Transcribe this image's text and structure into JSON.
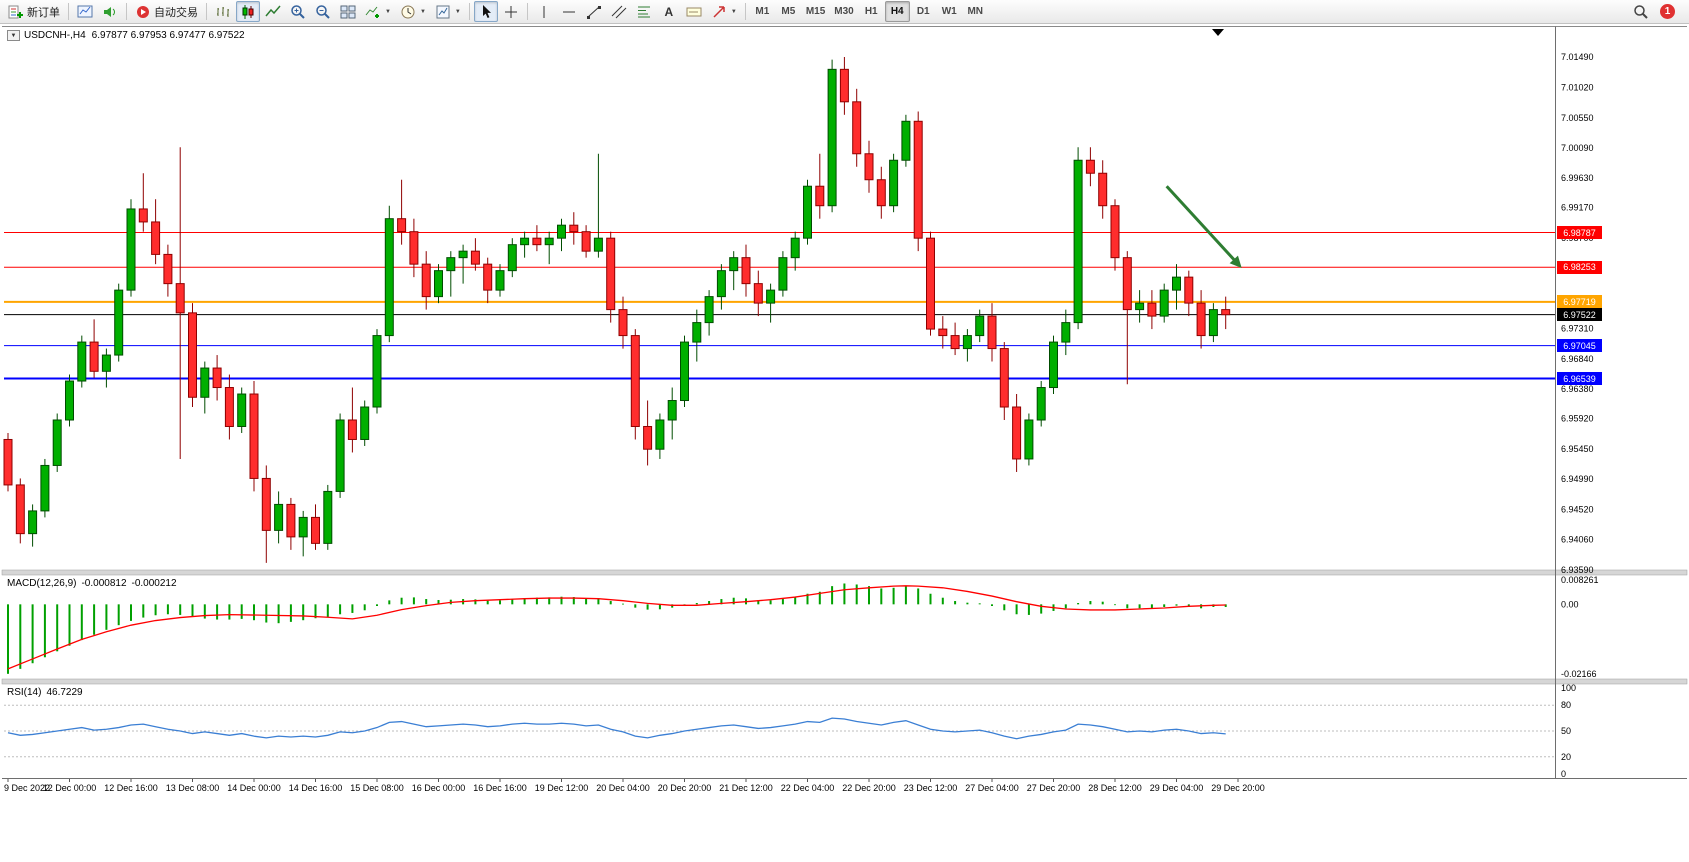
{
  "toolbar": {
    "new_order_label": "新订单",
    "auto_trading_label": "自动交易",
    "timeframes": [
      "M1",
      "M5",
      "M15",
      "M30",
      "H1",
      "H4",
      "D1",
      "W1",
      "MN"
    ],
    "active_timeframe": "H4",
    "badge_count": "1"
  },
  "chart": {
    "symbol_title": "USDCNH-,H4",
    "ohlc": "6.97877 6.97953 6.97477 6.97522",
    "colors": {
      "up_fill": "#00af00",
      "up_stroke": "#004d00",
      "down_fill": "#ff2d2d",
      "down_stroke": "#8f0000",
      "macd_hist": "#00a000",
      "macd_signal": "#ff0000",
      "rsi_line": "#3b7fd4",
      "axis_text": "#000000"
    },
    "price_lines": [
      {
        "label": "6.98787",
        "price": 6.98787,
        "color": "#ff0000",
        "width": 1
      },
      {
        "label": "6.98253",
        "price": 6.98253,
        "color": "#ff0000",
        "width": 1
      },
      {
        "label": "6.97719",
        "price": 6.97719,
        "color": "#ffa500",
        "width": 2
      },
      {
        "label": "6.97522",
        "price": 6.97522,
        "color": "#000000",
        "width": 1
      },
      {
        "label": "6.97045",
        "price": 6.97045,
        "color": "#0000ff",
        "width": 1
      },
      {
        "label": "6.96539",
        "price": 6.96539,
        "color": "#0000ff",
        "width": 2
      }
    ],
    "arrow": {
      "i1": 94.2,
      "p1": 6.995,
      "i2": 100.3,
      "p2": 6.9824,
      "color": "#2e7d32"
    }
  },
  "indicators": {
    "macd": {
      "name": "MACD(12,26,9)",
      "value_main": "-0.000812",
      "value_signal": "-0.000212"
    },
    "rsi": {
      "name": "RSI(14)",
      "value": "46.7229"
    }
  },
  "axes": {
    "price_labels": [
      "7.01490",
      "7.01020",
      "7.00550",
      "7.00090",
      "6.99630",
      "6.99170",
      "6.98700",
      "6.98230",
      "6.97770",
      "6.97310",
      "6.96840",
      "6.96380",
      "6.95920",
      "6.95450",
      "6.94990",
      "6.94520",
      "6.94060",
      "6.93590"
    ],
    "macd_labels": [
      "0.008261",
      "0.00",
      "-0.02166"
    ],
    "rsi_labels": [
      "100",
      "80",
      "50",
      "20",
      "0"
    ],
    "time_labels": [
      "9 Dec 2022",
      "12 Dec 00:00",
      "12 Dec 16:00",
      "13 Dec 08:00",
      "14 Dec 00:00",
      "14 Dec 16:00",
      "15 Dec 08:00",
      "16 Dec 00:00",
      "16 Dec 16:00",
      "19 Dec 12:00",
      "20 Dec 04:00",
      "20 Dec 20:00",
      "21 Dec 12:00",
      "22 Dec 04:00",
      "22 Dec 20:00",
      "23 Dec 12:00",
      "27 Dec 04:00",
      "27 Dec 20:00",
      "28 Dec 12:00",
      "29 Dec 04:00",
      "29 Dec 20:00"
    ]
  },
  "chart_data": {
    "type": "candlestick",
    "symbol": "USDCNH-",
    "timeframe": "H4",
    "price_range": {
      "max": 7.0149,
      "min": 6.9359
    },
    "candles": [
      [
        6.956,
        6.957,
        6.948,
        6.949
      ],
      [
        6.949,
        6.95,
        6.94,
        6.9415
      ],
      [
        6.9415,
        6.946,
        6.9395,
        6.945
      ],
      [
        6.945,
        6.953,
        6.944,
        6.952
      ],
      [
        6.952,
        6.96,
        6.951,
        6.959
      ],
      [
        6.959,
        6.966,
        6.958,
        6.965
      ],
      [
        6.965,
        6.972,
        6.964,
        6.971
      ],
      [
        6.971,
        6.9745,
        6.9655,
        6.9665
      ],
      [
        6.9665,
        6.97,
        6.964,
        6.969
      ],
      [
        6.969,
        6.98,
        6.968,
        6.979
      ],
      [
        6.979,
        6.993,
        6.978,
        6.9915
      ],
      [
        6.9915,
        6.997,
        6.988,
        6.9895
      ],
      [
        6.9895,
        6.993,
        6.983,
        6.9845
      ],
      [
        6.9845,
        6.986,
        6.978,
        6.98
      ],
      [
        6.98,
        7.001,
        6.953,
        6.9755
      ],
      [
        6.9755,
        6.977,
        6.961,
        6.9625
      ],
      [
        6.9625,
        6.968,
        6.96,
        6.967
      ],
      [
        6.967,
        6.969,
        6.962,
        6.964
      ],
      [
        6.964,
        6.966,
        6.956,
        6.958
      ],
      [
        6.958,
        6.964,
        6.957,
        6.963
      ],
      [
        6.963,
        6.965,
        6.948,
        6.95
      ],
      [
        6.95,
        6.952,
        6.937,
        6.942
      ],
      [
        6.942,
        6.948,
        6.94,
        6.946
      ],
      [
        6.946,
        6.947,
        6.939,
        6.941
      ],
      [
        6.941,
        6.945,
        6.938,
        6.944
      ],
      [
        6.944,
        6.946,
        6.939,
        6.94
      ],
      [
        6.94,
        6.949,
        6.939,
        6.948
      ],
      [
        6.948,
        6.96,
        6.947,
        6.959
      ],
      [
        6.959,
        6.964,
        6.954,
        6.956
      ],
      [
        6.956,
        6.962,
        6.955,
        6.961
      ],
      [
        6.961,
        6.973,
        6.96,
        6.972
      ],
      [
        6.972,
        6.992,
        6.971,
        6.99
      ],
      [
        6.99,
        6.996,
        6.986,
        6.988
      ],
      [
        6.988,
        6.99,
        6.981,
        6.983
      ],
      [
        6.983,
        6.985,
        6.976,
        6.978
      ],
      [
        6.978,
        6.983,
        6.977,
        6.982
      ],
      [
        6.982,
        6.985,
        6.978,
        6.984
      ],
      [
        6.984,
        6.986,
        6.98,
        6.985
      ],
      [
        6.985,
        6.987,
        6.982,
        6.983
      ],
      [
        6.983,
        6.984,
        6.977,
        6.979
      ],
      [
        6.979,
        6.983,
        6.978,
        6.982
      ],
      [
        6.982,
        6.987,
        6.981,
        6.986
      ],
      [
        6.986,
        6.988,
        6.984,
        6.987
      ],
      [
        6.987,
        6.989,
        6.985,
        6.986
      ],
      [
        6.986,
        6.988,
        6.983,
        6.987
      ],
      [
        6.987,
        6.99,
        6.985,
        6.989
      ],
      [
        6.989,
        6.991,
        6.986,
        6.988
      ],
      [
        6.988,
        6.989,
        6.984,
        6.985
      ],
      [
        6.985,
        7.0,
        6.984,
        6.987
      ],
      [
        6.987,
        6.988,
        6.974,
        6.976
      ],
      [
        6.976,
        6.978,
        6.97,
        6.972
      ],
      [
        6.972,
        6.973,
        6.956,
        6.958
      ],
      [
        6.958,
        6.962,
        6.952,
        6.9545
      ],
      [
        6.9545,
        6.96,
        6.953,
        6.959
      ],
      [
        6.959,
        6.964,
        6.956,
        6.962
      ],
      [
        6.962,
        6.972,
        6.961,
        6.971
      ],
      [
        6.971,
        6.976,
        6.968,
        6.974
      ],
      [
        6.974,
        6.979,
        6.972,
        6.978
      ],
      [
        6.978,
        6.983,
        6.976,
        6.982
      ],
      [
        6.982,
        6.985,
        6.979,
        6.984
      ],
      [
        6.984,
        6.986,
        6.978,
        6.98
      ],
      [
        6.98,
        6.982,
        6.975,
        6.977
      ],
      [
        6.977,
        6.98,
        6.974,
        6.979
      ],
      [
        6.979,
        6.985,
        6.978,
        6.984
      ],
      [
        6.984,
        6.988,
        6.982,
        6.987
      ],
      [
        6.987,
        6.996,
        6.986,
        6.995
      ],
      [
        6.995,
        7.0,
        6.99,
        6.992
      ],
      [
        6.992,
        7.0145,
        6.991,
        7.013
      ],
      [
        7.013,
        7.0149,
        7.006,
        7.008
      ],
      [
        7.008,
        7.01,
        6.998,
        7.0
      ],
      [
        7.0,
        7.002,
        6.994,
        6.996
      ],
      [
        6.996,
        6.998,
        6.99,
        6.992
      ],
      [
        6.992,
        7.0,
        6.991,
        6.999
      ],
      [
        6.999,
        7.006,
        6.998,
        7.005
      ],
      [
        7.005,
        7.0065,
        6.985,
        6.987
      ],
      [
        6.987,
        6.988,
        6.972,
        6.973
      ],
      [
        6.973,
        6.975,
        6.97,
        6.972
      ],
      [
        6.972,
        6.974,
        6.969,
        6.97
      ],
      [
        6.97,
        6.973,
        6.968,
        6.972
      ],
      [
        6.972,
        6.976,
        6.971,
        6.975
      ],
      [
        6.975,
        6.977,
        6.968,
        6.97
      ],
      [
        6.97,
        6.971,
        6.959,
        6.961
      ],
      [
        6.961,
        6.963,
        6.951,
        6.953
      ],
      [
        6.953,
        6.96,
        6.952,
        6.959
      ],
      [
        6.959,
        6.965,
        6.958,
        6.964
      ],
      [
        6.964,
        6.972,
        6.963,
        6.971
      ],
      [
        6.971,
        6.976,
        6.969,
        6.974
      ],
      [
        6.974,
        7.001,
        6.973,
        6.999
      ],
      [
        6.999,
        7.001,
        6.995,
        6.997
      ],
      [
        6.997,
        6.999,
        6.99,
        6.992
      ],
      [
        6.992,
        6.993,
        6.982,
        6.984
      ],
      [
        6.984,
        6.985,
        6.9645,
        6.976
      ],
      [
        6.976,
        6.979,
        6.974,
        6.977
      ],
      [
        6.977,
        6.979,
        6.973,
        6.975
      ],
      [
        6.975,
        6.98,
        6.974,
        6.979
      ],
      [
        6.979,
        6.983,
        6.976,
        6.981
      ],
      [
        6.981,
        6.982,
        6.975,
        6.977
      ],
      [
        6.977,
        6.979,
        6.97,
        6.972
      ],
      [
        6.972,
        6.977,
        6.971,
        6.976
      ],
      [
        6.976,
        6.978,
        6.973,
        6.97522
      ]
    ],
    "macd": {
      "range": {
        "max": 0.008261,
        "min": -0.02166
      },
      "histogram": [
        -0.021,
        -0.0195,
        -0.0178,
        -0.016,
        -0.0142,
        -0.0125,
        -0.0108,
        -0.0092,
        -0.0077,
        -0.0063,
        -0.005,
        -0.004,
        -0.0033,
        -0.003,
        -0.0032,
        -0.0038,
        -0.0043,
        -0.0046,
        -0.0046,
        -0.0044,
        -0.0048,
        -0.0055,
        -0.0057,
        -0.0053,
        -0.0048,
        -0.0042,
        -0.0038,
        -0.003,
        -0.0026,
        -0.0018,
        -0.0005,
        0.0012,
        0.002,
        0.0021,
        0.0016,
        0.0013,
        0.0014,
        0.0016,
        0.0015,
        0.0011,
        0.0012,
        0.0016,
        0.0019,
        0.002,
        0.0021,
        0.0023,
        0.0022,
        0.0018,
        0.0019,
        0.001,
        0.0002,
        -0.001,
        -0.0016,
        -0.0015,
        -0.001,
        -0.0002,
        0.0004,
        0.001,
        0.0016,
        0.002,
        0.0018,
        0.0013,
        0.0012,
        0.0016,
        0.0022,
        0.0032,
        0.0038,
        0.0055,
        0.0063,
        0.006,
        0.0055,
        0.0048,
        0.005,
        0.0056,
        0.0048,
        0.0032,
        0.002,
        0.001,
        0.0005,
        0.0003,
        -0.0005,
        -0.0018,
        -0.003,
        -0.0032,
        -0.0028,
        -0.002,
        -0.0012,
        0.0004,
        0.001,
        0.0008,
        -0.0002,
        -0.0012,
        -0.0012,
        -0.0012,
        -0.0008,
        -0.0004,
        -0.0008,
        -0.0012,
        -0.0008,
        -0.0008
      ],
      "signal_points": [
        [
          0,
          -0.0195
        ],
        [
          2,
          -0.0165
        ],
        [
          4,
          -0.0135
        ],
        [
          6,
          -0.0106
        ],
        [
          8,
          -0.0083
        ],
        [
          10,
          -0.0063
        ],
        [
          12,
          -0.0049
        ],
        [
          14,
          -0.004
        ],
        [
          16,
          -0.0034
        ],
        [
          18,
          -0.0031
        ],
        [
          21,
          -0.0033
        ],
        [
          24,
          -0.0035
        ],
        [
          26,
          -0.0039
        ],
        [
          28,
          -0.0044
        ],
        [
          30,
          -0.0033
        ],
        [
          32,
          -0.0016
        ],
        [
          34,
          -0.0004
        ],
        [
          36,
          0.0006
        ],
        [
          38,
          0.0011
        ],
        [
          40,
          0.0014
        ],
        [
          42,
          0.0017
        ],
        [
          44,
          0.0019
        ],
        [
          46,
          0.0019
        ],
        [
          48,
          0.0017
        ],
        [
          50,
          0.0011
        ],
        [
          52,
          0.0003
        ],
        [
          54,
          -0.0003
        ],
        [
          56,
          -0.0003
        ],
        [
          58,
          0.0003
        ],
        [
          60,
          0.0008
        ],
        [
          62,
          0.0014
        ],
        [
          64,
          0.0022
        ],
        [
          66,
          0.0033
        ],
        [
          68,
          0.0044
        ],
        [
          70,
          0.005
        ],
        [
          72,
          0.0055
        ],
        [
          73,
          0.0056
        ],
        [
          74,
          0.0055
        ],
        [
          76,
          0.005
        ],
        [
          78,
          0.0039
        ],
        [
          80,
          0.0025
        ],
        [
          82,
          0.0008
        ],
        [
          84,
          -0.0006
        ],
        [
          86,
          -0.0014
        ],
        [
          88,
          -0.0017
        ],
        [
          90,
          -0.0017
        ],
        [
          92,
          -0.0014
        ],
        [
          94,
          -0.0011
        ],
        [
          96,
          -0.0006
        ],
        [
          98,
          -0.0003
        ],
        [
          99,
          -0.0002
        ]
      ]
    },
    "rsi": {
      "range": {
        "max": 100,
        "min": 0
      },
      "levels": [
        80,
        50,
        20
      ],
      "values": [
        48,
        45,
        46,
        48,
        50,
        52,
        54,
        51,
        52,
        54,
        57,
        58,
        55,
        52,
        50,
        47,
        49,
        47,
        45,
        47,
        44,
        42,
        44,
        43,
        44,
        43,
        45,
        49,
        48,
        50,
        54,
        60,
        61,
        58,
        55,
        56,
        57,
        58,
        57,
        55,
        56,
        58,
        59,
        58,
        58,
        59,
        58,
        56,
        57,
        52,
        49,
        44,
        42,
        45,
        47,
        50,
        52,
        54,
        56,
        57,
        55,
        53,
        54,
        56,
        58,
        61,
        60,
        65,
        64,
        61,
        59,
        57,
        60,
        62,
        57,
        52,
        50,
        49,
        50,
        51,
        48,
        44,
        41,
        44,
        46,
        49,
        51,
        58,
        57,
        55,
        52,
        49,
        50,
        49,
        51,
        52,
        50,
        47,
        48,
        46.7
      ]
    }
  }
}
